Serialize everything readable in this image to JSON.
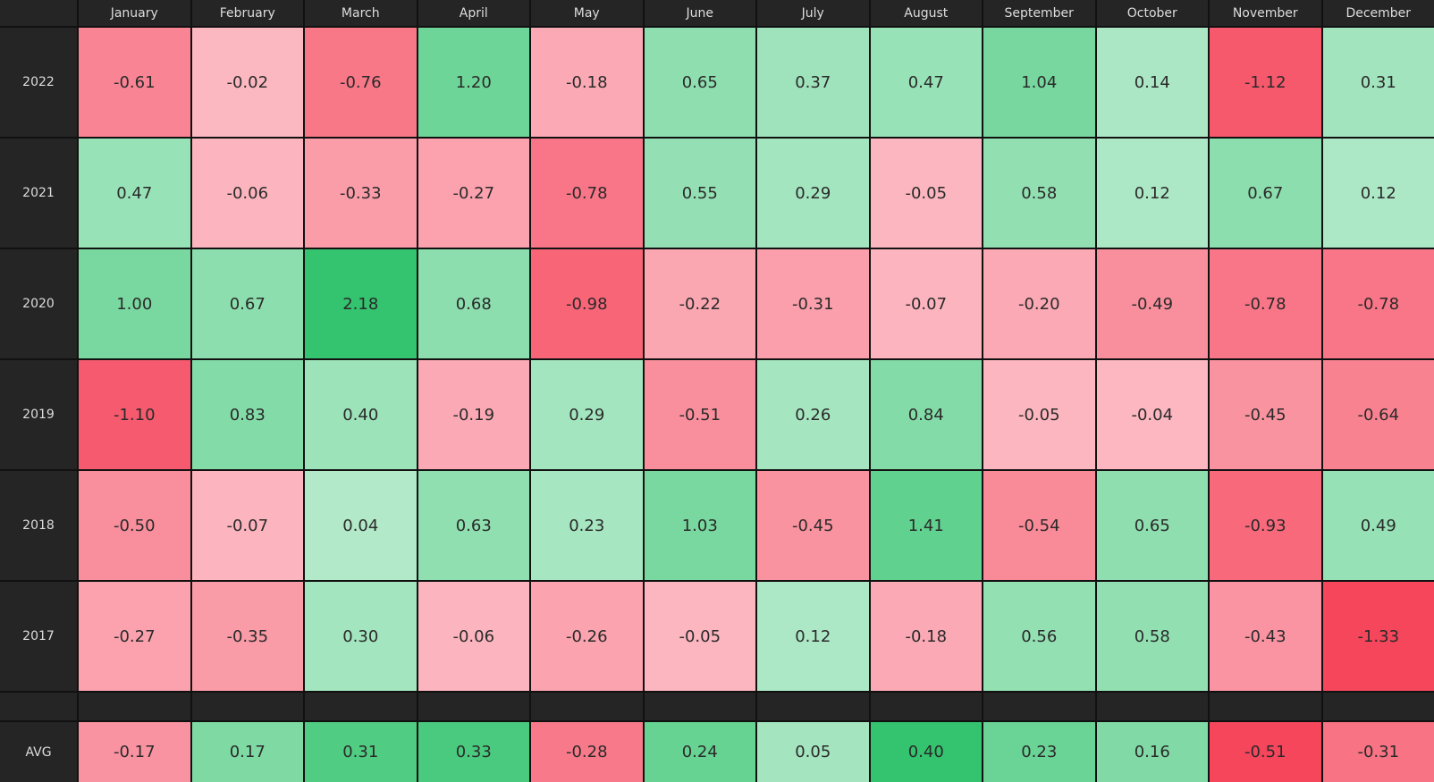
{
  "columns": [
    "January",
    "February",
    "March",
    "April",
    "May",
    "June",
    "July",
    "August",
    "September",
    "October",
    "November",
    "December"
  ],
  "rows": [
    {
      "label": "2022",
      "cells": [
        "-0.61",
        "-0.02",
        "-0.76",
        "1.20",
        "-0.18",
        "0.65",
        "0.37",
        "0.47",
        "1.04",
        "0.14",
        "-1.12",
        "0.31"
      ]
    },
    {
      "label": "2021",
      "cells": [
        "0.47",
        "-0.06",
        "-0.33",
        "-0.27",
        "-0.78",
        "0.55",
        "0.29",
        "-0.05",
        "0.58",
        "0.12",
        "0.67",
        "0.12"
      ]
    },
    {
      "label": "2020",
      "cells": [
        "1.00",
        "0.67",
        "2.18",
        "0.68",
        "-0.98",
        "-0.22",
        "-0.31",
        "-0.07",
        "-0.20",
        "-0.49",
        "-0.78",
        "-0.78"
      ]
    },
    {
      "label": "2019",
      "cells": [
        "-1.10",
        "0.83",
        "0.40",
        "-0.19",
        "0.29",
        "-0.51",
        "0.26",
        "0.84",
        "-0.05",
        "-0.04",
        "-0.45",
        "-0.64"
      ]
    },
    {
      "label": "2018",
      "cells": [
        "-0.50",
        "-0.07",
        "0.04",
        "0.63",
        "0.23",
        "1.03",
        "-0.45",
        "1.41",
        "-0.54",
        "0.65",
        "-0.93",
        "0.49"
      ]
    },
    {
      "label": "2017",
      "cells": [
        "-0.27",
        "-0.35",
        "0.30",
        "-0.06",
        "-0.26",
        "-0.05",
        "0.12",
        "-0.18",
        "0.56",
        "0.58",
        "-0.43",
        "-1.33"
      ]
    }
  ],
  "average": {
    "label": "AVG",
    "cells": [
      "-0.17",
      "0.17",
      "0.31",
      "0.33",
      "-0.28",
      "0.24",
      "0.05",
      "0.40",
      "0.23",
      "0.16",
      "-0.51",
      "-0.31"
    ]
  }
}
